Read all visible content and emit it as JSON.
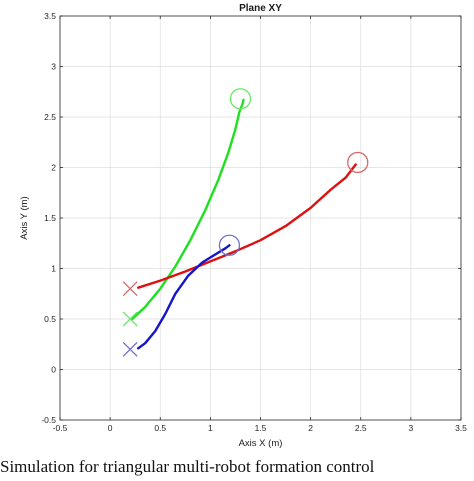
{
  "colors": {
    "background": "#ffffff",
    "axis": "#262626",
    "grid": "#dedede",
    "green_robot": "#1fe01f",
    "red_robot": "#dd1111",
    "blue_robot": "#1414c8",
    "green_marker": "#6be86b",
    "red_marker": "#d86a6a",
    "blue_marker": "#7070cc"
  },
  "chart_data": {
    "type": "line",
    "title": "Plane XY",
    "xlabel": "Axis X (m)",
    "ylabel": "Axis Y (m)",
    "xlim": [
      -0.5,
      3.5
    ],
    "ylim": [
      -0.5,
      3.5
    ],
    "xticks": [
      "-0.5",
      "0",
      "0.5",
      "1",
      "1.5",
      "2",
      "2.5",
      "3",
      "3.5"
    ],
    "yticks": [
      "-0.5",
      "0",
      "0.5",
      "1",
      "1.5",
      "2",
      "2.5",
      "3",
      "3.5"
    ],
    "grid": true,
    "series": [
      {
        "color": "green_robot",
        "marker_color": "green_marker",
        "start": [
          0.2,
          0.5
        ],
        "end": [
          1.3,
          2.68
        ],
        "x": [
          0.22,
          0.35,
          0.5,
          0.65,
          0.8,
          0.95,
          1.08,
          1.18,
          1.25,
          1.29,
          1.32,
          1.33
        ],
        "y": [
          0.5,
          0.62,
          0.8,
          1.02,
          1.28,
          1.58,
          1.88,
          2.15,
          2.38,
          2.55,
          2.63,
          2.67
        ]
      },
      {
        "color": "red_robot",
        "marker_color": "red_marker",
        "start": [
          0.2,
          0.8
        ],
        "end": [
          2.47,
          2.05
        ],
        "x": [
          0.28,
          0.5,
          0.75,
          1.0,
          1.25,
          1.5,
          1.75,
          2.0,
          2.2,
          2.35,
          2.45
        ],
        "y": [
          0.81,
          0.88,
          0.97,
          1.07,
          1.17,
          1.28,
          1.42,
          1.6,
          1.78,
          1.9,
          2.03
        ]
      },
      {
        "color": "blue_robot",
        "marker_color": "blue_marker",
        "start": [
          0.2,
          0.2
        ],
        "end": [
          1.19,
          1.23
        ],
        "x": [
          0.28,
          0.35,
          0.45,
          0.55,
          0.65,
          0.78,
          0.92,
          1.05,
          1.15,
          1.19
        ],
        "y": [
          0.21,
          0.26,
          0.38,
          0.55,
          0.75,
          0.93,
          1.06,
          1.14,
          1.2,
          1.23
        ]
      }
    ]
  },
  "caption": "Simulation for triangular multi-robot formation control"
}
